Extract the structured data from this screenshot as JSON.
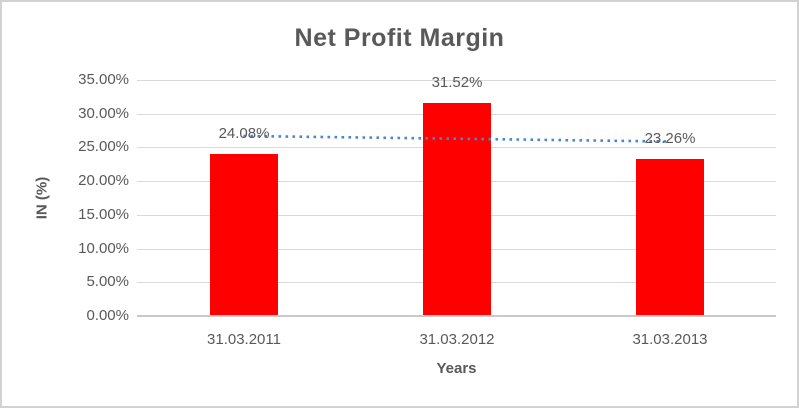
{
  "window": {
    "background_color": "#FFFFFF",
    "border_color": "#D4D1D1"
  },
  "chart_data": {
    "type": "bar",
    "title": "Net Profit Margin",
    "xlabel": "Years",
    "ylabel": "IN (%)",
    "categories": [
      "31.03.2011",
      "31.03.2012",
      "31.03.2013"
    ],
    "values": [
      24.08,
      31.52,
      23.26
    ],
    "data_labels": [
      "24.08%",
      "31.52%",
      "23.26%"
    ],
    "ylim": [
      0,
      35
    ],
    "ytick_step": 5,
    "ytick_labels": [
      "0.00%",
      "5.00%",
      "10.00%",
      "15.00%",
      "20.00%",
      "25.00%",
      "30.00%",
      "35.00%"
    ],
    "grid": true,
    "legend": "none",
    "bar_color": "#FF0000",
    "text_color": "#595959",
    "gridline_color": "#D9D9D9",
    "axis_line_color": "#C9C9C9",
    "trendline": {
      "type": "linear",
      "style": "dotted",
      "color": "#4A86C8",
      "start_value": 26.7,
      "end_value": 25.88
    }
  }
}
